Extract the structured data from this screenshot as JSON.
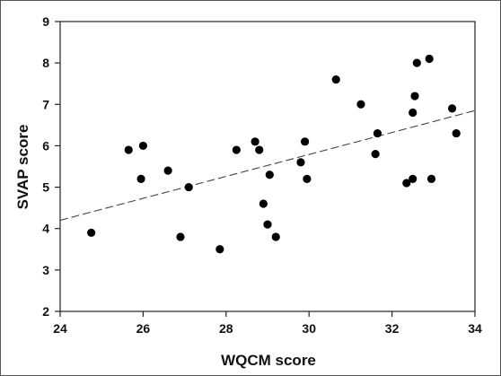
{
  "chart_data": {
    "type": "scatter",
    "title": "",
    "xlabel": "WQCM score",
    "ylabel": "SVAP score",
    "xlim": [
      24,
      34
    ],
    "ylim": [
      2,
      9
    ],
    "xticks": [
      24,
      26,
      28,
      30,
      32,
      34
    ],
    "yticks": [
      2,
      3,
      4,
      5,
      6,
      7,
      8,
      9
    ],
    "xtick_labels": [
      "24",
      "26",
      "28",
      "30",
      "32",
      "34"
    ],
    "ytick_labels": [
      "2",
      "3",
      "4",
      "5",
      "6",
      "7",
      "8",
      "9"
    ],
    "grid": false,
    "legend": "none",
    "points": [
      {
        "x": 24.75,
        "y": 3.9
      },
      {
        "x": 25.65,
        "y": 5.9
      },
      {
        "x": 25.95,
        "y": 5.2
      },
      {
        "x": 26.0,
        "y": 6.0
      },
      {
        "x": 26.6,
        "y": 5.4
      },
      {
        "x": 26.9,
        "y": 3.8
      },
      {
        "x": 27.1,
        "y": 5.0
      },
      {
        "x": 27.85,
        "y": 3.5
      },
      {
        "x": 28.25,
        "y": 5.9
      },
      {
        "x": 28.7,
        "y": 6.1
      },
      {
        "x": 28.8,
        "y": 5.9
      },
      {
        "x": 28.9,
        "y": 4.6
      },
      {
        "x": 29.0,
        "y": 4.1
      },
      {
        "x": 29.05,
        "y": 5.3
      },
      {
        "x": 29.2,
        "y": 3.8
      },
      {
        "x": 29.8,
        "y": 5.6
      },
      {
        "x": 29.9,
        "y": 6.1
      },
      {
        "x": 29.95,
        "y": 5.2
      },
      {
        "x": 30.65,
        "y": 7.6
      },
      {
        "x": 31.25,
        "y": 7.0
      },
      {
        "x": 31.6,
        "y": 5.8
      },
      {
        "x": 31.65,
        "y": 6.3
      },
      {
        "x": 32.35,
        "y": 5.1
      },
      {
        "x": 32.5,
        "y": 5.2
      },
      {
        "x": 32.5,
        "y": 6.8
      },
      {
        "x": 32.55,
        "y": 7.2
      },
      {
        "x": 32.6,
        "y": 8.0
      },
      {
        "x": 32.9,
        "y": 8.1
      },
      {
        "x": 32.95,
        "y": 5.2
      },
      {
        "x": 33.45,
        "y": 6.9
      },
      {
        "x": 33.55,
        "y": 6.3
      }
    ],
    "trendline": {
      "style": "dashed",
      "x": [
        24,
        34
      ],
      "y": [
        4.2,
        6.85
      ]
    },
    "colors": {
      "points": "#000000",
      "axis": "#222222",
      "trend": "#444444"
    }
  }
}
